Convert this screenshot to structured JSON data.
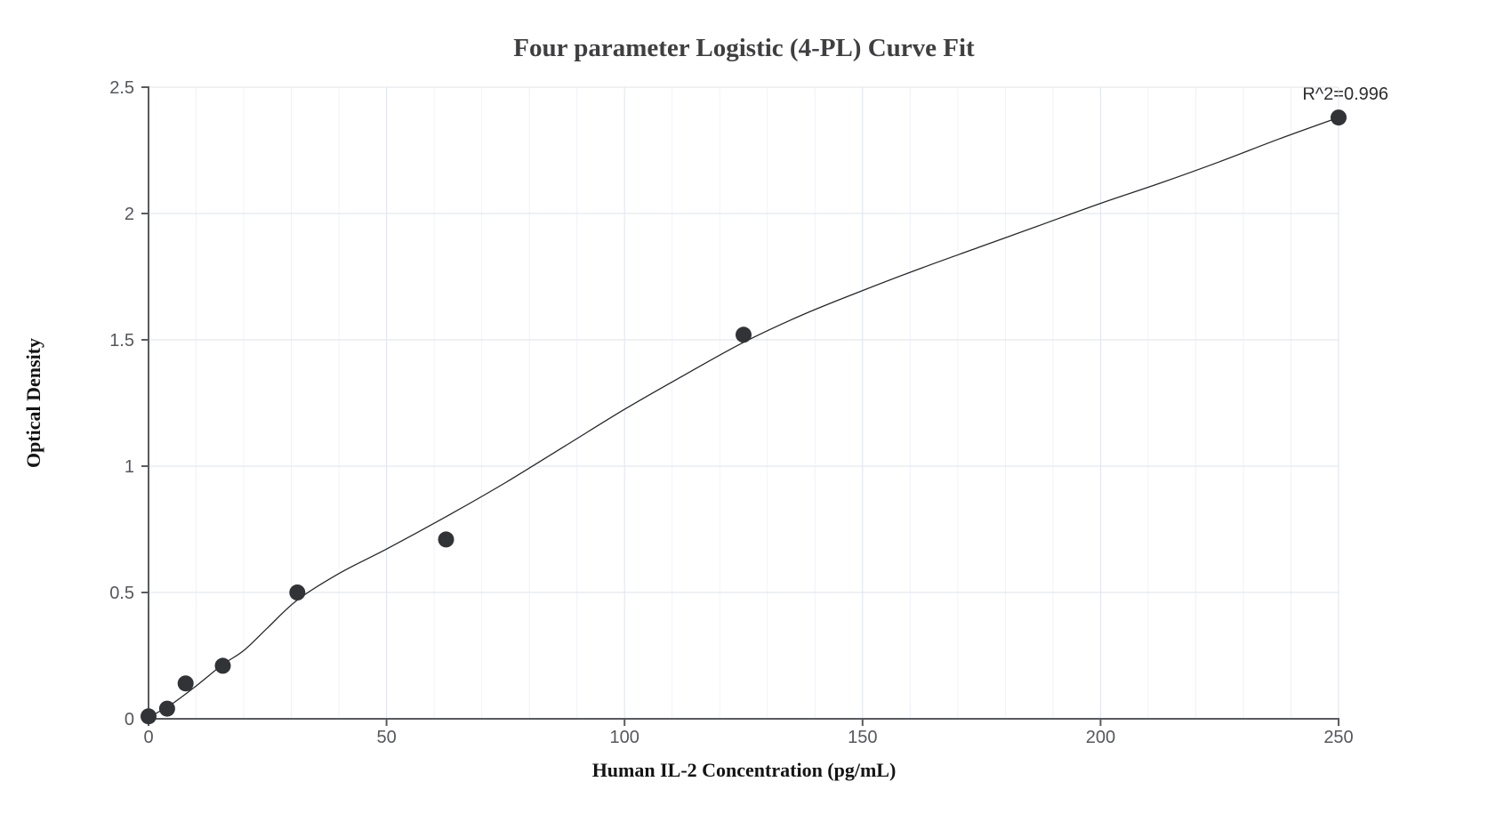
{
  "chart_data": {
    "type": "scatter",
    "title": "Four parameter Logistic (4-PL) Curve Fit",
    "xlabel": "Human IL-2 Concentration (pg/mL)",
    "ylabel": "Optical Density",
    "annotation": "R^2=0.996",
    "legend_position": "none",
    "x_axis": {
      "min": 0,
      "max": 250,
      "ticks": [
        0,
        50,
        100,
        150,
        200,
        250
      ],
      "tick_labels": [
        "0",
        "50",
        "100",
        "150",
        "200",
        "250"
      ],
      "minor_grid_step": 10
    },
    "y_axis": {
      "min": 0,
      "max": 2.5,
      "ticks": [
        0,
        0.5,
        1,
        1.5,
        2,
        2.5
      ],
      "tick_labels": [
        "0",
        "0.5",
        "1",
        "1.5",
        "2",
        "2.5"
      ]
    },
    "grid": {
      "major": true,
      "minor_vertical": true,
      "minor_horizontal": false
    },
    "series": [
      {
        "name": "standard-points",
        "type": "scatter",
        "points": [
          [
            0,
            0.01
          ],
          [
            3.9,
            0.04
          ],
          [
            7.8,
            0.14
          ],
          [
            15.6,
            0.21
          ],
          [
            31.25,
            0.5
          ],
          [
            62.5,
            0.71
          ],
          [
            125,
            1.52
          ],
          [
            250,
            2.38
          ]
        ]
      },
      {
        "name": "4pl-fit-curve",
        "type": "line",
        "points": [
          [
            0,
            0.005
          ],
          [
            5,
            0.06
          ],
          [
            10,
            0.13
          ],
          [
            15.6,
            0.215
          ],
          [
            20,
            0.27
          ],
          [
            25,
            0.36
          ],
          [
            31.25,
            0.47
          ],
          [
            40,
            0.575
          ],
          [
            50,
            0.672
          ],
          [
            62.5,
            0.8
          ],
          [
            75,
            0.935
          ],
          [
            87.5,
            1.08
          ],
          [
            100,
            1.225
          ],
          [
            112.5,
            1.36
          ],
          [
            125,
            1.49
          ],
          [
            137.5,
            1.6
          ],
          [
            150,
            1.695
          ],
          [
            162.5,
            1.785
          ],
          [
            175,
            1.87
          ],
          [
            187.5,
            1.955
          ],
          [
            200,
            2.04
          ],
          [
            212.5,
            2.12
          ],
          [
            225,
            2.205
          ],
          [
            237.5,
            2.295
          ],
          [
            250,
            2.38
          ]
        ]
      }
    ],
    "colors": {
      "background": "#ffffff",
      "point": "#323337",
      "curve": "#26272a",
      "grid_major": "#dfe3ee",
      "grid_minor": "#f0f2f9",
      "axis": "#595b60",
      "tick_label": "#55575d",
      "title": "#3f3f41",
      "axis_label": "#141414",
      "annotation": "#2e2e30"
    }
  }
}
